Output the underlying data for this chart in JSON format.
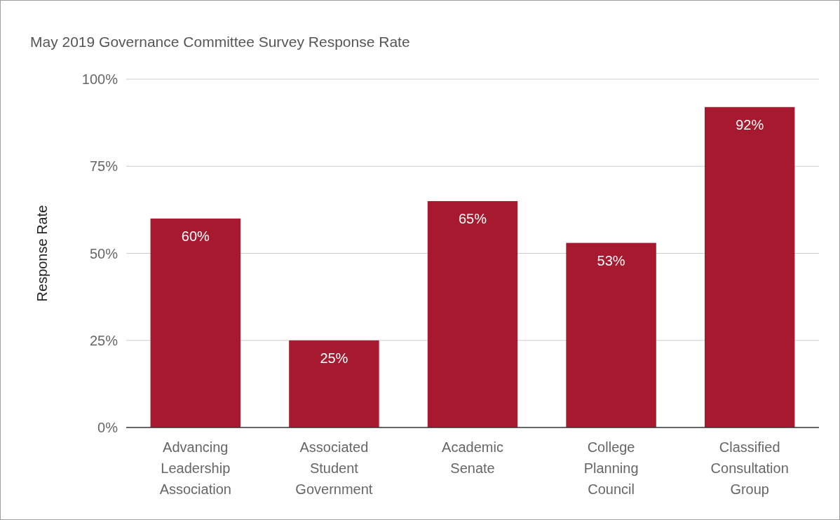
{
  "chart_data": {
    "type": "bar",
    "title": "May 2019 Governance Committee Survey Response Rate",
    "ylabel": "Response Rate",
    "categories": [
      "Advancing Leadership Association",
      "Associated Student Government",
      "Academic Senate",
      "College Planning Council",
      "Classified Consultation Group"
    ],
    "values": [
      60,
      25,
      65,
      53,
      92
    ],
    "value_labels": [
      "60%",
      "25%",
      "65%",
      "53%",
      "92%"
    ],
    "color": "#a6192e",
    "ylim": [
      0,
      100
    ],
    "yticks": [
      {
        "value": 0,
        "label": "0%"
      },
      {
        "value": 25,
        "label": "25%"
      },
      {
        "value": 50,
        "label": "50%"
      },
      {
        "value": 75,
        "label": "75%"
      },
      {
        "value": 100,
        "label": "100%"
      }
    ],
    "grid": true
  }
}
